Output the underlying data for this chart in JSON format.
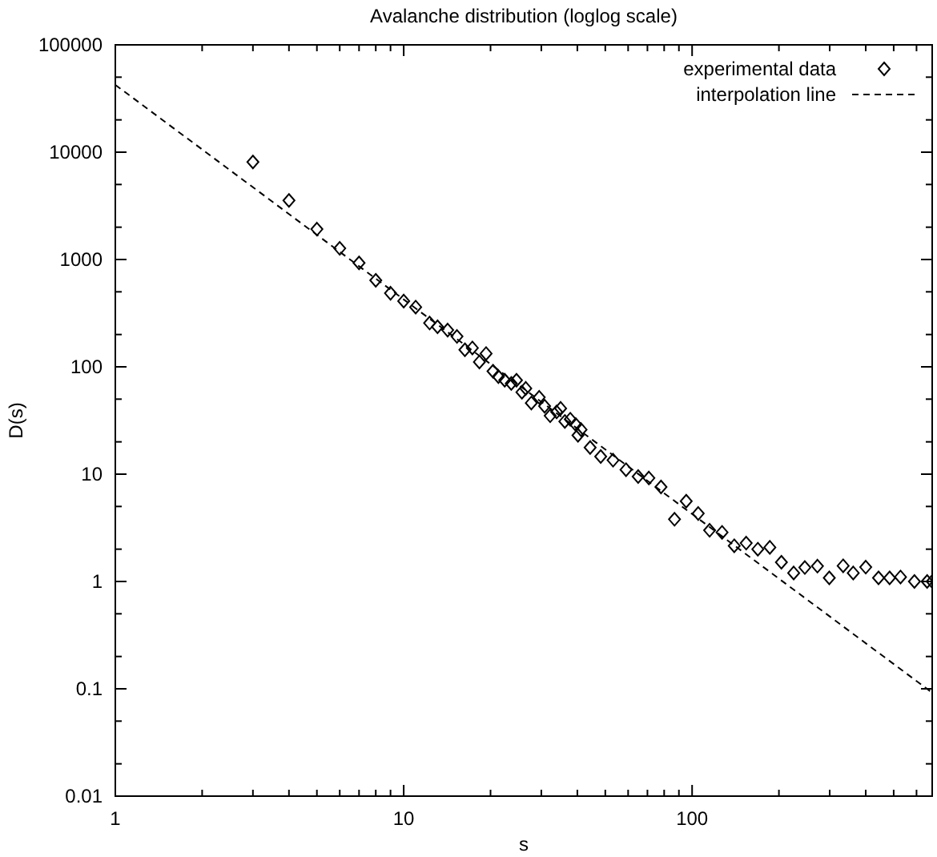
{
  "chart_data": {
    "type": "scatter",
    "title": "Avalanche distribution (loglog scale)",
    "xlabel": "s",
    "ylabel": "D(s)",
    "log": "xy",
    "grid": false,
    "legend": "top right",
    "xlim": [
      1,
      680
    ],
    "ylim": [
      0.01,
      100000
    ],
    "xticks": [
      1,
      {
        "value": 2,
        "label": null
      },
      {
        "value": 3,
        "label": null
      },
      {
        "value": 4,
        "label": null
      },
      {
        "value": 5,
        "label": null
      },
      {
        "value": 6,
        "label": null
      },
      {
        "value": 7,
        "label": null
      },
      {
        "value": 8,
        "label": null
      },
      {
        "value": 9,
        "label": null
      },
      10,
      {
        "value": 20,
        "label": null
      },
      {
        "value": 30,
        "label": null
      },
      {
        "value": 40,
        "label": null
      },
      {
        "value": 50,
        "label": null
      },
      {
        "value": 60,
        "label": null
      },
      {
        "value": 70,
        "label": null
      },
      {
        "value": 80,
        "label": null
      },
      {
        "value": 90,
        "label": null
      },
      100,
      {
        "value": 200,
        "label": null
      },
      {
        "value": 300,
        "label": null
      },
      {
        "value": 400,
        "label": null
      },
      {
        "value": 500,
        "label": null
      },
      {
        "value": 600,
        "label": null
      }
    ],
    "yticks": [
      0.01,
      {
        "value": 0.02,
        "label": null
      },
      {
        "value": 0.05,
        "label": null
      },
      0.1,
      {
        "value": 0.2,
        "label": null
      },
      {
        "value": 0.5,
        "label": null
      },
      1,
      {
        "value": 2,
        "label": null
      },
      {
        "value": 5,
        "label": null
      },
      10,
      {
        "value": 20,
        "label": null
      },
      {
        "value": 50,
        "label": null
      },
      100,
      {
        "value": 200,
        "label": null
      },
      {
        "value": 500,
        "label": null
      },
      1000,
      {
        "value": 2000,
        "label": null
      },
      {
        "value": 5000,
        "label": null
      },
      10000,
      {
        "value": 20000,
        "label": null
      },
      {
        "value": 50000,
        "label": null
      },
      100000
    ],
    "series": [
      {
        "name": "experimental data",
        "marker": "diamond",
        "color": "#000000",
        "x": [
          3,
          4,
          5,
          6,
          7,
          8,
          9,
          10,
          11,
          12.3,
          13.1,
          14.2,
          15.3,
          16.3,
          17.3,
          18.3,
          19.3,
          20.4,
          21.3,
          22.4,
          23.6,
          24.6,
          25.7,
          26.5,
          27.7,
          29.5,
          30.8,
          32.2,
          33.9,
          35,
          36.2,
          37.8,
          39.5,
          40.2,
          41.2,
          44.3,
          48.2,
          53.2,
          59,
          65,
          70.8,
          78,
          86.9,
          95.4,
          105,
          115,
          127,
          140,
          154,
          169,
          186,
          204,
          225,
          246,
          272,
          299,
          334,
          362,
          400,
          443,
          484,
          528,
          590,
          653,
          680
        ],
        "values": [
          8100,
          3550,
          1920,
          1270,
          930,
          640,
          485,
          410,
          360,
          256,
          236,
          220,
          192,
          144,
          150,
          111,
          133,
          91,
          81,
          75,
          70,
          75,
          58,
          63,
          46,
          52,
          43,
          35,
          38,
          41,
          31,
          32.5,
          29,
          23,
          26,
          17.7,
          14.6,
          13.5,
          11,
          9.5,
          9.2,
          7.6,
          3.8,
          5.6,
          4.3,
          3.0,
          2.87,
          2.15,
          2.28,
          2.0,
          2.08,
          1.51,
          1.2,
          1.35,
          1.39,
          1.08,
          1.4,
          1.2,
          1.36,
          1.08,
          1.08,
          1.1,
          1.0,
          1.0,
          1.0
        ]
      },
      {
        "name": "interpolation line",
        "type": "line",
        "line_style": "dashed",
        "marker": "none",
        "color": "#000000",
        "x": [
          1,
          680
        ],
        "values": [
          42400,
          0.092
        ]
      }
    ]
  }
}
